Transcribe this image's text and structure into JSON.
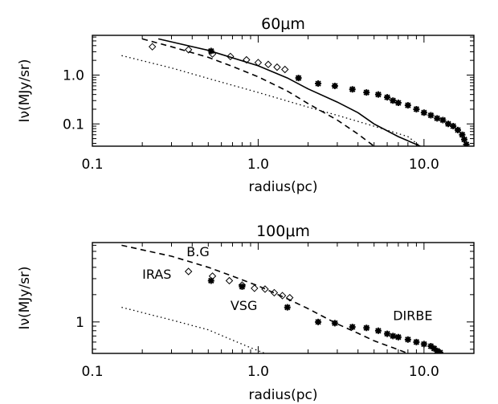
{
  "chart_data": [
    {
      "type": "scatter",
      "title": "60μm",
      "xlabel": "radius(pc)",
      "ylabel": "Iν(MJy/sr)",
      "xscale": "log",
      "yscale": "log",
      "xlim": [
        0.1,
        20
      ],
      "ylim": [
        0.035,
        6.5
      ],
      "xticks": [
        {
          "value": 0.1,
          "label": "0.1"
        },
        {
          "value": 1.0,
          "label": "1.0"
        },
        {
          "value": 10.0,
          "label": "10.0"
        }
      ],
      "yticks": [
        {
          "value": 1.0,
          "label": "1.0"
        },
        {
          "value": 0.1,
          "label": "0.1"
        }
      ],
      "series": [
        {
          "style": "solid",
          "x": [
            0.25,
            0.5,
            1,
            1.5,
            2,
            3,
            4,
            5,
            7,
            9.5
          ],
          "y": [
            5.5,
            3.2,
            1.55,
            0.87,
            0.52,
            0.28,
            0.17,
            0.1,
            0.055,
            0.035
          ]
        },
        {
          "style": "dashed",
          "x": [
            0.2,
            0.3,
            0.5,
            0.7,
            1,
            1.5,
            2,
            3,
            4,
            5
          ],
          "y": [
            5.5,
            3.8,
            2.3,
            1.5,
            0.92,
            0.47,
            0.26,
            0.12,
            0.062,
            0.035
          ]
        },
        {
          "style": "dotted",
          "x": [
            0.15,
            0.3,
            0.5,
            1,
            2,
            3,
            5,
            8,
            9.5
          ],
          "y": [
            2.5,
            1.4,
            0.85,
            0.44,
            0.22,
            0.15,
            0.09,
            0.055,
            0.035
          ]
        },
        {
          "marker": "diamond",
          "x": [
            0.23,
            0.38,
            0.53,
            0.68,
            0.85,
            1.0,
            1.15,
            1.3,
            1.45
          ],
          "y": [
            3.8,
            3.3,
            2.7,
            2.4,
            2.05,
            1.8,
            1.65,
            1.45,
            1.3
          ]
        },
        {
          "marker": "asterisk",
          "x": [
            0.52,
            1.75,
            2.3,
            2.9,
            3.7,
            4.5,
            5.3,
            6.0,
            6.5,
            7.0,
            8.0,
            9.0,
            10.0,
            11.0,
            12.0,
            13.0,
            14.0,
            15.0,
            16.0,
            17.0,
            17.5,
            18.0
          ],
          "y": [
            3.1,
            0.87,
            0.67,
            0.6,
            0.51,
            0.44,
            0.4,
            0.35,
            0.3,
            0.27,
            0.24,
            0.2,
            0.17,
            0.15,
            0.13,
            0.12,
            0.1,
            0.09,
            0.075,
            0.06,
            0.048,
            0.038
          ]
        }
      ]
    },
    {
      "type": "scatter",
      "title": "100μm",
      "xlabel": "radius(pc)",
      "ylabel": "Iν(MJy/sr)",
      "xscale": "log",
      "yscale": "log",
      "xlim": [
        0.1,
        20
      ],
      "ylim": [
        0.45,
        7.5
      ],
      "xticks": [
        {
          "value": 0.1,
          "label": "0.1"
        },
        {
          "value": 1.0,
          "label": "1.0"
        },
        {
          "value": 10.0,
          "label": "10.0"
        }
      ],
      "yticks": [
        {
          "value": 1,
          "label": "1"
        }
      ],
      "annotations": [
        {
          "text": "B.G",
          "x": 0.37,
          "y": 5.3
        },
        {
          "text": "IRAS",
          "x": 0.2,
          "y": 3.0
        },
        {
          "text": "VSG",
          "x": 0.68,
          "y": 1.35
        },
        {
          "text": "DIRBE",
          "x": 6.5,
          "y": 1.05
        }
      ],
      "series": [
        {
          "style": "dashed",
          "x": [
            0.15,
            0.3,
            0.5,
            0.7,
            1,
            1.5,
            2,
            3,
            4,
            5,
            6.5,
            8
          ],
          "y": [
            7.0,
            5.3,
            4.0,
            3.2,
            2.5,
            1.8,
            1.4,
            0.95,
            0.75,
            0.62,
            0.52,
            0.45
          ]
        },
        {
          "style": "dotted",
          "x": [
            0.15,
            0.3,
            0.5,
            0.7,
            0.9,
            1.1
          ],
          "y": [
            1.45,
            1.05,
            0.82,
            0.63,
            0.52,
            0.45
          ]
        },
        {
          "marker": "diamond",
          "x": [
            0.38,
            0.53,
            0.67,
            0.8,
            0.95,
            1.1,
            1.25,
            1.4,
            1.55
          ],
          "y": [
            3.6,
            3.2,
            2.85,
            2.55,
            2.35,
            2.3,
            2.1,
            1.95,
            1.85
          ]
        },
        {
          "marker": "asterisk",
          "x": [
            0.52,
            0.8,
            1.5,
            2.3,
            2.9,
            3.7,
            4.5,
            5.3,
            6.0,
            6.5,
            7.0,
            8.0,
            9.0,
            10.0,
            11.0,
            11.5,
            12.0,
            12.5
          ],
          "y": [
            2.85,
            2.45,
            1.45,
            1.0,
            0.97,
            0.88,
            0.86,
            0.8,
            0.74,
            0.7,
            0.68,
            0.64,
            0.6,
            0.57,
            0.54,
            0.51,
            0.48,
            0.46
          ]
        }
      ]
    }
  ]
}
